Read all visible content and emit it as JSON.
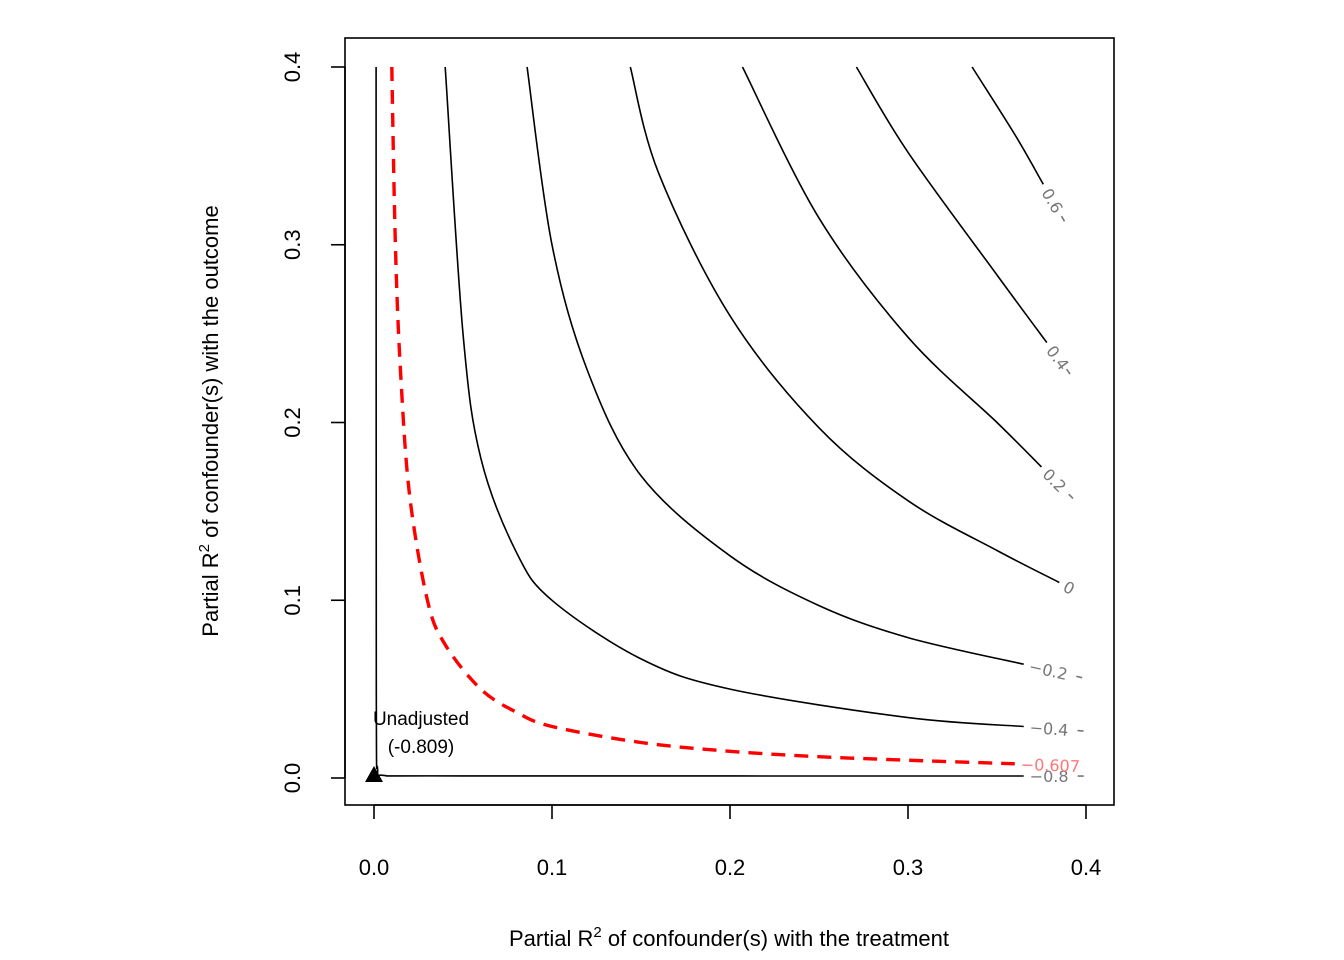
{
  "chart_data": {
    "type": "contour",
    "xlabel": {
      "prefix": "Partial R",
      "sup": "2",
      "suffix": " of confounder(s) with the treatment"
    },
    "ylabel": {
      "prefix": "Partial R",
      "sup": "2",
      "suffix": " of confounder(s) with the outcome"
    },
    "xlim": [
      0,
      0.4
    ],
    "ylim": [
      0,
      0.4
    ],
    "x_ticks": [
      "0.0",
      "0.1",
      "0.2",
      "0.3",
      "0.4"
    ],
    "y_ticks": [
      "0.0",
      "0.1",
      "0.2",
      "0.3",
      "0.4"
    ],
    "grid": false,
    "contours": [
      {
        "level": -0.8,
        "label": "−0.8",
        "color": "#000000",
        "points": [
          [
            0.0012,
            0.4
          ],
          [
            0.0013,
            0.05
          ],
          [
            0.002,
            0.005
          ],
          [
            0.005,
            0.0015
          ],
          [
            0.05,
            0.0012
          ],
          [
            0.365,
            0.0011
          ]
        ]
      },
      {
        "level": -0.4,
        "label": "−0.4",
        "color": "#000000",
        "points": [
          [
            0.04,
            0.4
          ],
          [
            0.05,
            0.25
          ],
          [
            0.06,
            0.18
          ],
          [
            0.08,
            0.127
          ],
          [
            0.1,
            0.1
          ],
          [
            0.15,
            0.067
          ],
          [
            0.2,
            0.05
          ],
          [
            0.3,
            0.034
          ],
          [
            0.365,
            0.029
          ]
        ]
      },
      {
        "level": -0.2,
        "label": "−0.2",
        "color": "#000000",
        "points": [
          [
            0.086,
            0.4
          ],
          [
            0.1,
            0.3
          ],
          [
            0.12,
            0.229
          ],
          [
            0.15,
            0.17
          ],
          [
            0.2,
            0.125
          ],
          [
            0.25,
            0.097
          ],
          [
            0.3,
            0.079
          ],
          [
            0.365,
            0.064
          ]
        ]
      },
      {
        "level": 0,
        "label": "0",
        "color": "#000000",
        "points": [
          [
            0.144,
            0.4
          ],
          [
            0.16,
            0.34
          ],
          [
            0.2,
            0.26
          ],
          [
            0.25,
            0.197
          ],
          [
            0.3,
            0.156
          ],
          [
            0.35,
            0.128
          ],
          [
            0.385,
            0.11
          ]
        ]
      },
      {
        "level": 0.2,
        "label": "0.2",
        "color": "#000000",
        "points": [
          [
            0.207,
            0.4
          ],
          [
            0.25,
            0.315
          ],
          [
            0.3,
            0.248
          ],
          [
            0.35,
            0.2
          ],
          [
            0.375,
            0.175
          ]
        ]
      },
      {
        "level": 0.4,
        "label": "0.4",
        "color": "#000000",
        "points": [
          [
            0.271,
            0.4
          ],
          [
            0.3,
            0.352
          ],
          [
            0.35,
            0.283
          ],
          [
            0.378,
            0.245
          ]
        ]
      },
      {
        "level": 0.6,
        "label": "0.6",
        "color": "#000000",
        "points": [
          [
            0.336,
            0.4
          ],
          [
            0.36,
            0.362
          ],
          [
            0.376,
            0.334
          ]
        ]
      }
    ],
    "threshold_curve": {
      "level": -0.607,
      "label": "−0.607",
      "color": "#ff0000",
      "dashed": true,
      "points": [
        [
          0.01,
          0.4
        ],
        [
          0.012,
          0.3
        ],
        [
          0.015,
          0.227
        ],
        [
          0.02,
          0.159
        ],
        [
          0.03,
          0.1
        ],
        [
          0.04,
          0.075
        ],
        [
          0.06,
          0.05
        ],
        [
          0.08,
          0.037
        ],
        [
          0.1,
          0.029
        ],
        [
          0.15,
          0.02
        ],
        [
          0.2,
          0.015
        ],
        [
          0.25,
          0.012
        ],
        [
          0.3,
          0.01
        ],
        [
          0.36,
          0.008
        ]
      ]
    },
    "unadjusted_point": {
      "x": 0,
      "y": 0,
      "label": "Unadjusted",
      "value": "(-0.809)"
    }
  }
}
